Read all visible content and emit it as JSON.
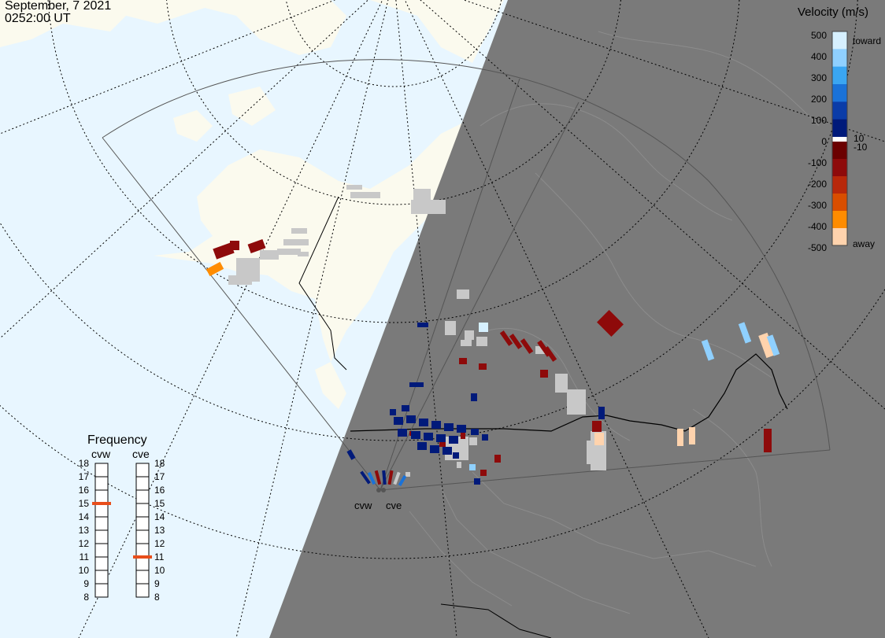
{
  "header": {
    "date": "September, 7 2021",
    "time": "0252:00 UT"
  },
  "colorbar": {
    "title": "Velocity (m/s)",
    "ticks": [
      "500",
      "400",
      "300",
      "200",
      "100",
      "10",
      "0",
      "-10",
      "-100",
      "-200",
      "-300",
      "-400",
      "-500"
    ],
    "toward_label": "toward",
    "away_label": "away",
    "colors": {
      "toward": [
        "#d6f0ff",
        "#8fd0ff",
        "#3aa6f2",
        "#1a72d8",
        "#0a3ca8",
        "#001a7a"
      ],
      "away": [
        "#6b0000",
        "#8e0a0a",
        "#b8280a",
        "#d94e00",
        "#ff8c00",
        "#ffd3ad"
      ]
    }
  },
  "frequency_panel": {
    "title": "Frequency",
    "radars": [
      {
        "name": "cvw",
        "frequency_mhz": 15
      },
      {
        "name": "cve",
        "frequency_mhz": 11
      }
    ],
    "scale": [
      "18",
      "17",
      "16",
      "15",
      "14",
      "13",
      "12",
      "11",
      "10",
      "9",
      "8"
    ],
    "marker_color": "#e84e1b"
  },
  "map": {
    "radars": [
      {
        "name": "cvw"
      },
      {
        "name": "cve"
      }
    ],
    "colors": {
      "ocean": "#e8f6ff",
      "land": "#fbfaee",
      "night": "#7a7a7a",
      "ground_scatter": "#c8c8c8"
    }
  }
}
